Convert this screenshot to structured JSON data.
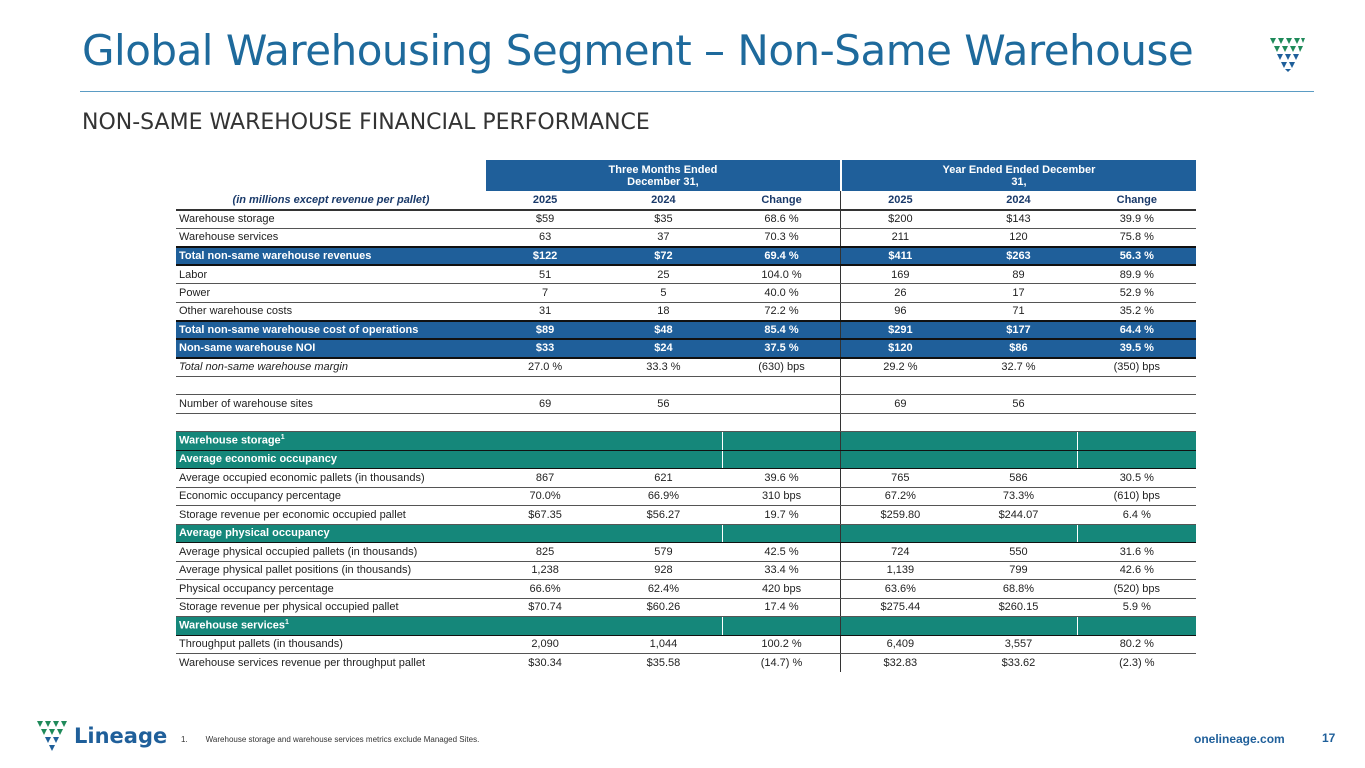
{
  "title": "Global Warehousing Segment – Non-Same Warehouse",
  "subtitle": "NON-SAME WAREHOUSE FINANCIAL PERFORMANCE",
  "colors": {
    "navy": "#1f5f9a",
    "teal": "#15877a",
    "title": "#1e6a9c"
  },
  "table": {
    "group_headers": [
      "Three Months Ended December 31,",
      "Year Ended Ended December 31,"
    ],
    "column_headers": [
      "(in millions except revenue per pallet)",
      "2025",
      "2024",
      "Change",
      "2025",
      "2024",
      "Change"
    ],
    "rows": {
      "r0": [
        "Warehouse storage",
        "$59",
        "$35",
        "68.6 %",
        "$200",
        "$143",
        "39.9 %"
      ],
      "r1": [
        "Warehouse services",
        "63",
        "37",
        "70.3 %",
        "211",
        "120",
        "75.8 %"
      ],
      "r2": [
        "Total non-same warehouse revenues",
        "$122",
        "$72",
        "69.4 %",
        "$411",
        "$263",
        "56.3 %"
      ],
      "r3": [
        "Labor",
        "51",
        "25",
        "104.0 %",
        "169",
        "89",
        "89.9 %"
      ],
      "r4": [
        "Power",
        "7",
        "5",
        "40.0 %",
        "26",
        "17",
        "52.9 %"
      ],
      "r5": [
        "Other warehouse costs",
        "31",
        "18",
        "72.2 %",
        "96",
        "71",
        "35.2 %"
      ],
      "r6": [
        "Total non-same warehouse cost of operations",
        "$89",
        "$48",
        "85.4 %",
        "$291",
        "$177",
        "64.4 %"
      ],
      "r7": [
        "Non-same warehouse NOI",
        "$33",
        "$24",
        "37.5 %",
        "$120",
        "$86",
        "39.5 %"
      ],
      "r8": [
        "Total non-same warehouse margin",
        "27.0 %",
        "33.3 %",
        "(630) bps",
        "29.2 %",
        "32.7 %",
        "(350) bps"
      ],
      "r9": [
        "Number of warehouse sites",
        "69",
        "56",
        "",
        "69",
        "56",
        ""
      ],
      "s0": "Warehouse storage",
      "s1": "Average economic occupancy",
      "r10": [
        "Average occupied economic pallets (in thousands)",
        "867",
        "621",
        "39.6 %",
        "765",
        "586",
        "30.5 %"
      ],
      "r11": [
        "Economic occupancy percentage",
        "70.0%",
        "66.9%",
        "310 bps",
        "67.2%",
        "73.3%",
        "(610) bps"
      ],
      "r12": [
        "Storage revenue per economic occupied pallet",
        "$67.35",
        "$56.27",
        "19.7 %",
        "$259.80",
        "$244.07",
        "6.4 %"
      ],
      "s2": "Average physical occupancy",
      "r13": [
        "Average physical occupied pallets (in thousands)",
        "825",
        "579",
        "42.5 %",
        "724",
        "550",
        "31.6 %"
      ],
      "r14": [
        "Average physical pallet positions (in thousands)",
        "1,238",
        "928",
        "33.4 %",
        "1,139",
        "799",
        "42.6 %"
      ],
      "r15": [
        "Physical occupancy percentage",
        "66.6%",
        "62.4%",
        "420 bps",
        "63.6%",
        "68.8%",
        "(520) bps"
      ],
      "r16": [
        "Storage revenue per physical occupied pallet",
        "$70.74",
        "$60.26",
        "17.4 %",
        "$275.44",
        "$260.15",
        "5.9 %"
      ],
      "s3": "Warehouse services",
      "r17": [
        "Throughput pallets (in thousands)",
        "2,090",
        "1,044",
        "100.2 %",
        "6,409",
        "3,557",
        "80.2 %"
      ],
      "r18": [
        "Warehouse services revenue per throughput pallet",
        "$30.34",
        "$35.58",
        "(14.7) %",
        "$32.83",
        "$33.62",
        "(2.3) %"
      ]
    },
    "superscript": "1"
  },
  "footer": {
    "brand": "Lineage",
    "footnote_number": "1.",
    "footnote_text": "Warehouse storage and warehouse services metrics exclude Managed Sites.",
    "website": "onelineage.com",
    "page_number": "17"
  }
}
